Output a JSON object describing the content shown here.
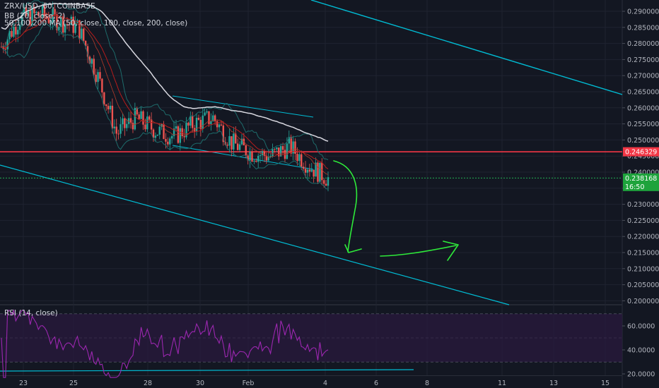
{
  "legend": {
    "symbol_line": "ZRX/USD, 60, COINBASE",
    "bb_line": "BB (20, close, 2)",
    "ma_line": "50,100,200 MA (50, close, 100, close, 200, close)",
    "rsi_line": "RSI (14, close)"
  },
  "price_axis": {
    "ticks": [
      "0.290000",
      "0.285000",
      "0.280000",
      "0.275000",
      "0.270000",
      "0.265000",
      "0.260000",
      "0.255000",
      "0.250000",
      "0.245000",
      "0.240000",
      "0.235000",
      "0.230000",
      "0.225000",
      "0.220000",
      "0.215000",
      "0.210000",
      "0.205000",
      "0.200000"
    ],
    "red_tag": "0.246329",
    "green_tag": "0.238168",
    "countdown_tag": "16:50"
  },
  "rsi_axis": {
    "ticks": [
      "60.0000",
      "40.0000",
      "20.0000"
    ]
  },
  "time_axis": {
    "ticks": [
      "23",
      "25",
      "28",
      "30",
      "Feb",
      "4",
      "6",
      "8",
      "11",
      "13",
      "15"
    ]
  },
  "colors": {
    "background": "#131722",
    "up": "#26a69a",
    "down": "#ef5350",
    "bb": "#1e6b6b",
    "ma_white": "#d8d8e0",
    "ma_red": "#b71c1c",
    "trendline": "#00bcd4",
    "support": "#f23645",
    "last_price": "#26c55a",
    "arrows": "#2eea3a",
    "rsi": "#9c27b0",
    "rsi_band": "#2a1a3d"
  },
  "chart_data": {
    "type": "candlestick",
    "symbol": "ZRX/USD",
    "timeframe": "60",
    "exchange": "COINBASE",
    "x_labels": [
      "23",
      "25",
      "28",
      "30",
      "Feb",
      "4",
      "6",
      "8",
      "11",
      "13",
      "15"
    ],
    "ylim": [
      0.196,
      0.292
    ],
    "support_level": 0.246329,
    "last_price": 0.238168,
    "price_path": [
      {
        "date": "23",
        "close": 0.279
      },
      {
        "date": "24",
        "close": 0.288
      },
      {
        "date": "25",
        "close": 0.289
      },
      {
        "date": "26",
        "close": 0.287
      },
      {
        "date": "27",
        "close": 0.285
      },
      {
        "date": "27.5",
        "close": 0.27
      },
      {
        "date": "28",
        "close": 0.252
      },
      {
        "date": "28.5",
        "close": 0.257
      },
      {
        "date": "29",
        "close": 0.253
      },
      {
        "date": "29.5",
        "close": 0.251
      },
      {
        "date": "30",
        "close": 0.255
      },
      {
        "date": "30.5",
        "close": 0.257
      },
      {
        "date": "31",
        "close": 0.249
      },
      {
        "date": "Feb",
        "close": 0.246
      },
      {
        "date": "2",
        "close": 0.245
      },
      {
        "date": "3",
        "close": 0.248
      },
      {
        "date": "3.5",
        "close": 0.242
      },
      {
        "date": "4",
        "close": 0.238
      }
    ],
    "rsi": {
      "name": "RSI (14, close)",
      "upper_band": 70,
      "lower_band": 30,
      "ylim": [
        15,
        75
      ]
    }
  }
}
